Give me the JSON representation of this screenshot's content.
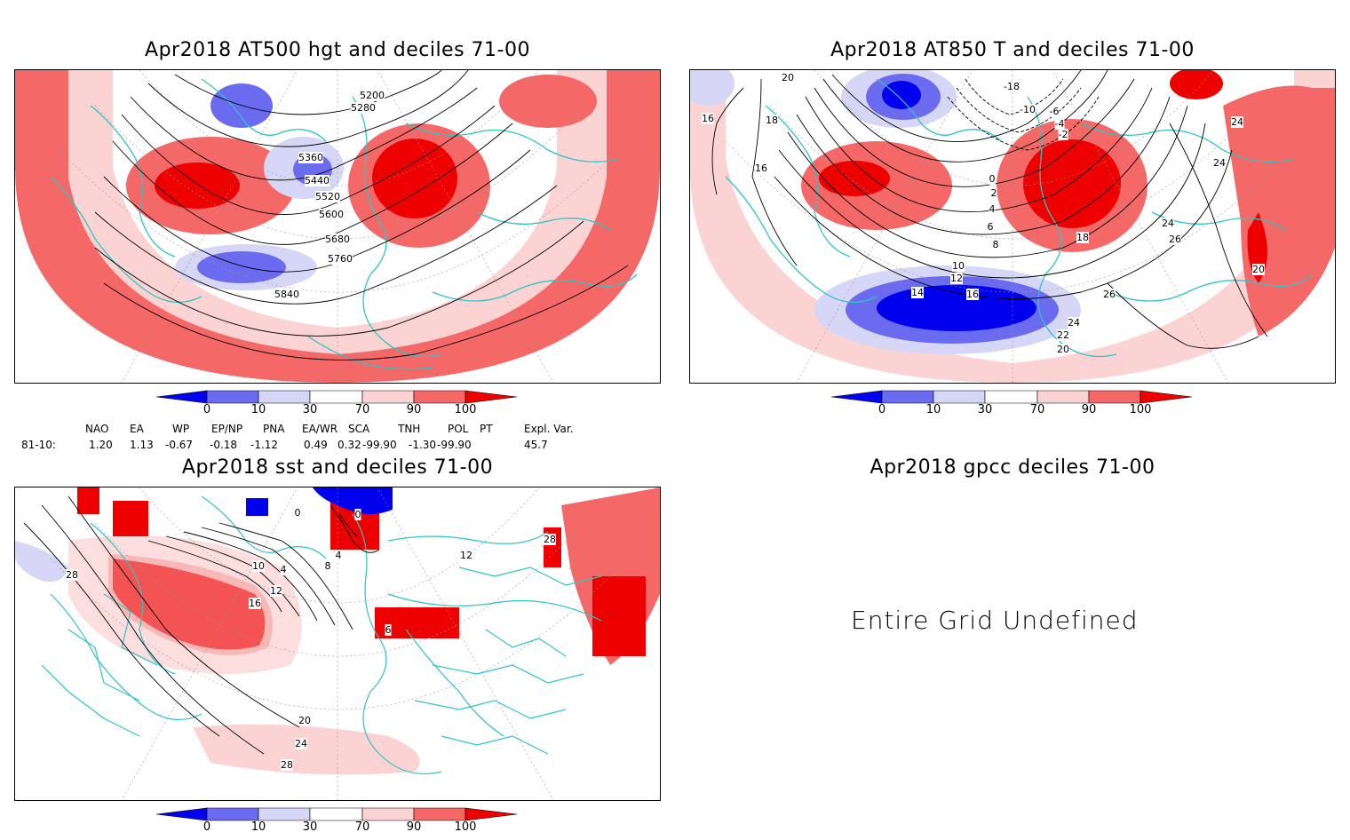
{
  "panels": {
    "hgt500": {
      "title": "Apr2018 AT500 hgt and deciles 71-00",
      "contour_labels": [
        "5200",
        "5280",
        "5360",
        "5440",
        "5520",
        "5600",
        "5680",
        "5760",
        "5840"
      ]
    },
    "t850": {
      "title": "Apr2018 AT850 T and deciles 71-00",
      "contour_labels": [
        "20",
        "18",
        "16",
        "16",
        "-18",
        "-10",
        "-6",
        "-4",
        "-2",
        "0",
        "2",
        "4",
        "6",
        "8",
        "10",
        "12",
        "14",
        "16",
        "18",
        "24",
        "24",
        "24",
        "26",
        "26",
        "24",
        "22",
        "20",
        "20"
      ]
    },
    "sst": {
      "title": "Apr2018 sst and deciles 71-00",
      "contour_labels": [
        "28",
        "0",
        "0",
        "4",
        "8",
        "4",
        "10",
        "12",
        "16",
        "12",
        "20",
        "24",
        "28",
        "28",
        "6"
      ]
    },
    "gpcc": {
      "title": "Apr2018 gpcc deciles 71-00",
      "message": "Entire Grid Undefined"
    }
  },
  "colorbar": {
    "ticks": [
      "0",
      "10",
      "30",
      "70",
      "90",
      "100"
    ],
    "colors": [
      "#0000ee",
      "#6b6bef",
      "#d6d6f6",
      "#ffffff",
      "#fbd3d3",
      "#f46868",
      "#ee0000"
    ]
  },
  "indices": {
    "headers": [
      "NAO",
      "EA",
      "WP",
      "EP/NP",
      "PNA",
      "EA/WR",
      "SCA",
      "TNH",
      "POL",
      "PT",
      "Expl. Var."
    ],
    "row_label": "81-10:",
    "values": [
      "1.20",
      "1.13",
      "-0.67",
      "-0.18",
      "-1.12",
      "0.49",
      "0.32",
      "-99.90",
      "-1.30",
      "-99.90",
      "45.7"
    ]
  },
  "map_colors": {
    "coast": "#2ec4c4",
    "contour": "#000000",
    "red_strong": "#ee0000",
    "red_mid": "#f46868",
    "red_light": "#fbd3d3",
    "blue_strong": "#0000ee",
    "blue_mid": "#6b6bef",
    "blue_light": "#d6d6f6"
  }
}
